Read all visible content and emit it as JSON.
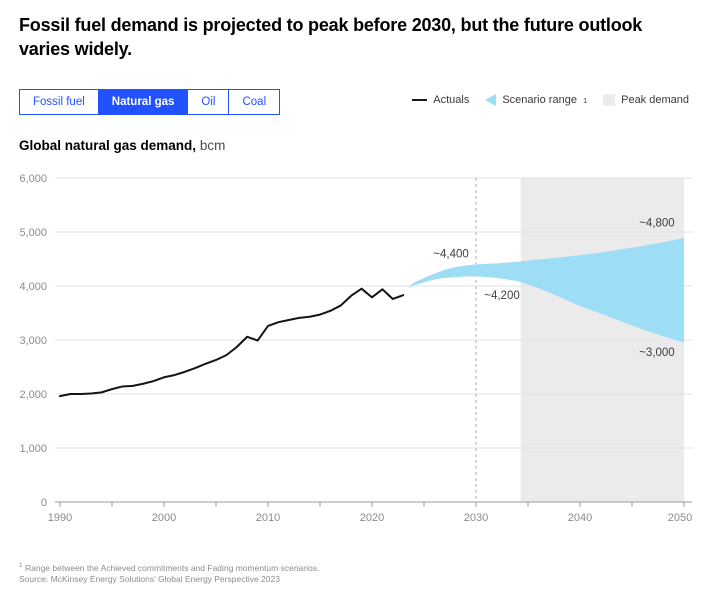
{
  "header": {
    "title": "Fossil fuel demand is projected to peak before 2030, but the future outlook varies widely."
  },
  "tabs": {
    "items": [
      {
        "label": "Fossil fuel",
        "active": false
      },
      {
        "label": "Natural gas",
        "active": true
      },
      {
        "label": "Oil",
        "active": false
      },
      {
        "label": "Coal",
        "active": false
      }
    ]
  },
  "legend": {
    "actuals": "Actuals",
    "scenario_range": "Scenario range",
    "scenario_range_sup": "1",
    "peak_demand": "Peak demand"
  },
  "chart_heading": {
    "title_bold": "Global natural gas demand,",
    "title_unit": "bcm"
  },
  "colors": {
    "accent_blue": "#2251FF",
    "band_blue": "#9EDDF6",
    "region_gray": "#EBEBEB",
    "actuals_black": "#141414",
    "gridline": "#E3E3E3",
    "axis": "#9B9B9B",
    "axis_label": "#8C8C8C",
    "divider_dash": "#B0B0B0",
    "annotation_text": "#3D3D3D"
  },
  "chart_data": {
    "type": "line",
    "title": "Global natural gas demand",
    "ylabel": "bcm",
    "ylim": [
      0,
      6000
    ],
    "xlim": [
      1990,
      2050
    ],
    "grid": true,
    "legend_position": "top-right",
    "y_axis": {
      "ticks": [
        {
          "value": 0,
          "label": "0"
        },
        {
          "value": 1000,
          "label": "1,000"
        },
        {
          "value": 2000,
          "label": "2,000"
        },
        {
          "value": 3000,
          "label": "3,000"
        },
        {
          "value": 4000,
          "label": "4,000"
        },
        {
          "value": 5000,
          "label": "5,000"
        },
        {
          "value": 6000,
          "label": "6,000"
        }
      ]
    },
    "x_axis": {
      "minor_tick_years": [
        1990,
        1995,
        2000,
        2005,
        2010,
        2015,
        2020,
        2025,
        2030,
        2035,
        2040,
        2045,
        2050
      ],
      "ticks": [
        {
          "year": 1990,
          "label": "1990"
        },
        {
          "year": 2000,
          "label": "2000"
        },
        {
          "year": 2010,
          "label": "2010"
        },
        {
          "year": 2020,
          "label": "2020"
        },
        {
          "year": 2030,
          "label": "2030"
        },
        {
          "year": 2040,
          "label": "2040"
        },
        {
          "year": 2050,
          "label": "2050"
        }
      ]
    },
    "series": [
      {
        "name": "Actuals",
        "start_year": 1990,
        "values": [
          1960,
          2000,
          2000,
          2010,
          2030,
          2090,
          2140,
          2150,
          2190,
          2240,
          2310,
          2350,
          2410,
          2480,
          2560,
          2630,
          2720,
          2870,
          3060,
          2990,
          3260,
          3330,
          3370,
          3410,
          3430,
          3470,
          3540,
          3640,
          3820,
          3950,
          3790,
          3940,
          3760,
          3830
        ]
      }
    ],
    "scenario_band": {
      "name": "Scenario range",
      "years": [
        2023.4,
        2024,
        2025,
        2026,
        2027,
        2028,
        2029,
        2030,
        2032,
        2034,
        2036,
        2038,
        2040,
        2042,
        2044,
        2046,
        2048,
        2050
      ],
      "top": [
        3950,
        4060,
        4150,
        4230,
        4300,
        4350,
        4380,
        4400,
        4420,
        4450,
        4490,
        4530,
        4570,
        4620,
        4680,
        4740,
        4810,
        4890
      ],
      "bottom": [
        3950,
        4010,
        4070,
        4120,
        4150,
        4165,
        4175,
        4180,
        4150,
        4090,
        3960,
        3800,
        3630,
        3490,
        3340,
        3200,
        3070,
        2950
      ]
    },
    "peak_demand_region": {
      "from_year": 2034.3,
      "to_year": 2050
    },
    "projection_divider_year": 2030,
    "annotations": [
      {
        "label": "~4,400",
        "year": 2027.6,
        "value": 4600
      },
      {
        "label": "~4,200",
        "year": 2032.5,
        "value": 3830
      },
      {
        "label": "~4,800",
        "year": 2047.4,
        "value": 5180
      },
      {
        "label": "~3,000",
        "year": 2047.4,
        "value": 2780
      }
    ]
  },
  "footnote": {
    "sup": "1",
    "line1": " Range between the Achieved commitments and Fading momentum scenarios.",
    "line2": "Source: McKinsey Energy Solutions’ Global Energy Perspective 2023"
  }
}
